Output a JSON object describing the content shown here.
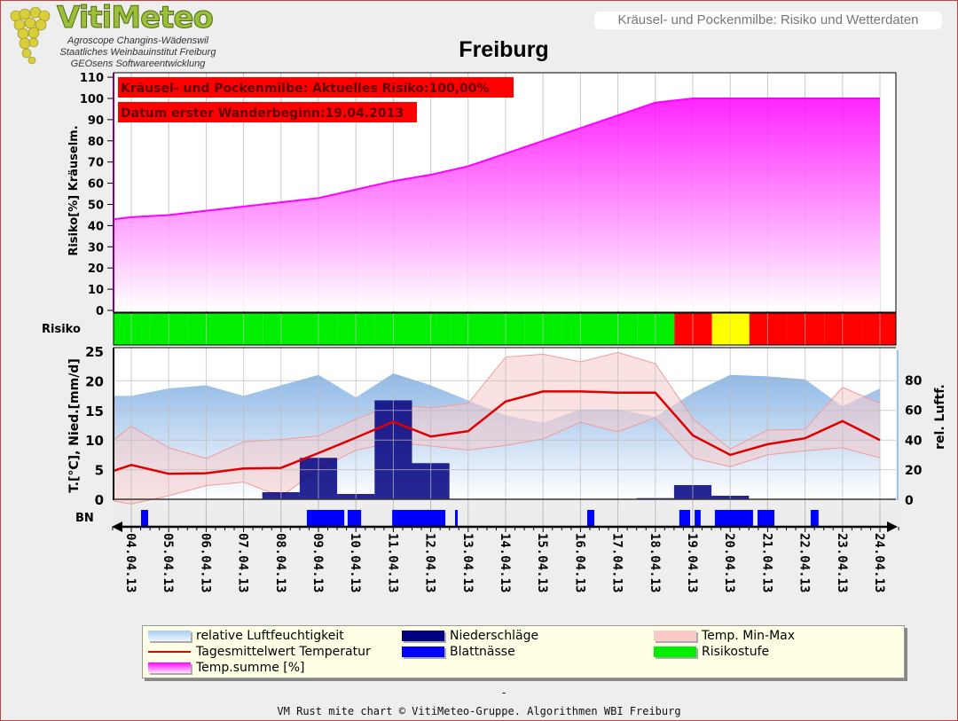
{
  "header": {
    "logo_text": "VitiMeteo",
    "logo_lines": [
      "Agroscope Changins-Wädenswil",
      "Staatliches Weinbauinstitut Freiburg",
      "GEOsens Softwareentwicklung"
    ],
    "subtitle": "Kräusel- und Pockenmilbe: Risiko und Wetterdaten",
    "title": "Freiburg"
  },
  "annotations": {
    "risk_current": "Kräusel- und Pockenmilbe: Aktuelles Risiko:100,00%",
    "first_migration": "Datum erster Wanderbeginn:19.04.2013"
  },
  "chart_data": [
    {
      "type": "area",
      "ylabel": "Risiko[%] Kräuselm.",
      "ylim": [
        0,
        110
      ],
      "yticks": [
        0,
        10,
        20,
        30,
        40,
        50,
        60,
        70,
        80,
        90,
        100,
        110
      ],
      "x_dates": [
        "04.04.13",
        "05.04.13",
        "06.04.13",
        "07.04.13",
        "08.04.13",
        "09.04.13",
        "10.04.13",
        "11.04.13",
        "12.04.13",
        "13.04.13",
        "14.04.13",
        "15.04.13",
        "16.04.13",
        "17.04.13",
        "18.04.13",
        "19.04.13",
        "20.04.13",
        "21.04.13",
        "22.04.13",
        "23.04.13",
        "24.04.13"
      ],
      "series": [
        {
          "name": "Temp.summe [%]",
          "values": [
            44,
            45,
            47,
            49,
            51,
            53,
            57,
            61,
            64,
            68,
            74,
            80,
            86,
            92,
            98,
            100,
            100,
            100,
            100,
            100,
            100
          ]
        }
      ],
      "color": "#ff00ff"
    },
    {
      "type": "heatmap",
      "label": "Risiko",
      "values": [
        "green",
        "green",
        "green",
        "green",
        "green",
        "green",
        "green",
        "green",
        "green",
        "green",
        "green",
        "green",
        "green",
        "green",
        "green",
        "red",
        "yellow",
        "red",
        "red",
        "red",
        "red"
      ],
      "colors": {
        "green": "#00ee00",
        "yellow": "#ffff00",
        "red": "#ff0000"
      }
    },
    {
      "type": "line",
      "ylabel": "T.[°C], Nied.[mm/d]",
      "ylim": [
        0,
        25
      ],
      "yticks": [
        0,
        5,
        10,
        15,
        20,
        25
      ],
      "y2label": "rel. Luftf.",
      "y2ticks": [
        0,
        20,
        40,
        60,
        80
      ],
      "series": [
        {
          "name": "relative Luftfeuchtigkeit",
          "axis": "right",
          "values": [
            69,
            74,
            76,
            69,
            76,
            83,
            68,
            84,
            76,
            66,
            56,
            51,
            60,
            60,
            55,
            71,
            83,
            82,
            80,
            62,
            74
          ],
          "color": "#8fb8e6"
        },
        {
          "name": "Tagesmittelwert Temperatur",
          "values": [
            5.8,
            4.3,
            4.4,
            5.2,
            5.3,
            7.8,
            10.4,
            13.1,
            10.6,
            11.5,
            16.5,
            18.2,
            18.2,
            18.0,
            18.0,
            10.8,
            7.5,
            9.3,
            10.3,
            13.2,
            10.0
          ],
          "color": "#e00000"
        },
        {
          "name": "Temp. Min-Max",
          "max": [
            12.3,
            8.7,
            6.9,
            9.7,
            10.1,
            10.7,
            13.5,
            16.0,
            15.4,
            16.2,
            24.0,
            24.5,
            23.2,
            24.8,
            22.9,
            13.6,
            8.5,
            11.7,
            11.8,
            18.9,
            16.2
          ],
          "min": [
            -0.8,
            0.6,
            2.3,
            2.9,
            0.5,
            5.0,
            8.3,
            9.6,
            9.0,
            8.3,
            9.1,
            10.2,
            13.0,
            11.4,
            13.8,
            7.0,
            5.5,
            7.5,
            8.2,
            8.7,
            7.0
          ],
          "color": "#f4b8b8"
        },
        {
          "name": "Niederschläge",
          "type": "bar",
          "values": [
            0,
            0,
            0,
            0,
            1.2,
            7.0,
            0.9,
            16.7,
            6.1,
            0,
            0,
            0,
            0,
            0,
            0.2,
            2.4,
            0.6,
            0,
            0,
            0,
            0
          ],
          "color": "#000080"
        }
      ]
    },
    {
      "type": "bar",
      "label": "BN",
      "series": [
        {
          "name": "Blattnässe",
          "color": "#0000ff",
          "intervals_day_of_april": [
            [
              4.26,
              4.45
            ],
            [
              8.69,
              9.69
            ],
            [
              9.78,
              10.14
            ],
            [
              10.97,
              12.39
            ],
            [
              12.65,
              12.72
            ],
            [
              16.18,
              16.37
            ],
            [
              18.64,
              18.93
            ],
            [
              19.05,
              19.21
            ],
            [
              19.59,
              20.61
            ],
            [
              20.73,
              21.18
            ],
            [
              22.15,
              22.36
            ]
          ]
        }
      ]
    }
  ],
  "legend": {
    "items": [
      "relative Luftfeuchtigkeit",
      "Niederschläge",
      "Temp. Min-Max",
      "Tagesmittelwert Temperatur",
      "Blattnässe",
      "Risikostufe",
      "Temp.summe [%]"
    ]
  },
  "footer": {
    "dash": "-",
    "text": "VM Rust mite chart © VitiMeteo-Gruppe. Algorithmen WBI Freiburg"
  }
}
